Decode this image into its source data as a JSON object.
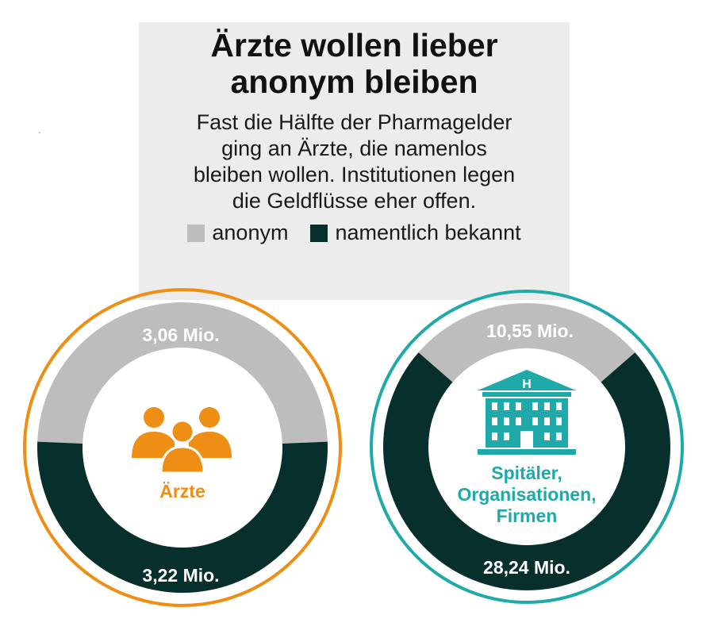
{
  "title_line1": "Ärzte wollen lieber",
  "title_line2": "anonym bleiben",
  "subtitle_lines": [
    "Fast die Hälfte der Pharmagelder",
    "ging an Ärzte, die namenlos",
    "bleiben wollen. Institutionen legen",
    "die Geldflüsse eher offen."
  ],
  "legend": [
    {
      "label": "anonym",
      "color": "#bdbdbd"
    },
    {
      "label": "namentlich bekannt",
      "color": "#072f2c"
    }
  ],
  "colors": {
    "anonym": "#bdbdbd",
    "namentlich": "#072f2c",
    "aerzte_accent": "#ee8e14",
    "institutionen_accent": "#1fa9a9"
  },
  "icons": [
    "people-group-icon",
    "hospital-building-icon"
  ],
  "hospital_sign": "H",
  "chart_data": [
    {
      "type": "pie",
      "category_label_lines": [
        "Ärzte"
      ],
      "slices": [
        {
          "name": "anonym",
          "value": 3.06,
          "label": "3,06 Mio."
        },
        {
          "name": "namentlich bekannt",
          "value": 3.22,
          "label": "3,22 Mio."
        }
      ],
      "unit": "Mio.",
      "legend_position": "top"
    },
    {
      "type": "pie",
      "category_label_lines": [
        "Spitäler,",
        "Organisationen,",
        "Firmen"
      ],
      "slices": [
        {
          "name": "anonym",
          "value": 10.55,
          "label": "10,55 Mio."
        },
        {
          "name": "namentlich bekannt",
          "value": 28.24,
          "label": "28,24 Mio."
        }
      ],
      "unit": "Mio.",
      "legend_position": "top"
    }
  ]
}
